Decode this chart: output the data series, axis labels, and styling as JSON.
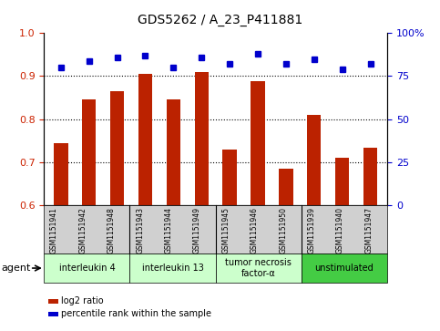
{
  "title": "GDS5262 / A_23_P411881",
  "samples": [
    "GSM1151941",
    "GSM1151942",
    "GSM1151948",
    "GSM1151943",
    "GSM1151944",
    "GSM1151949",
    "GSM1151945",
    "GSM1151946",
    "GSM1151950",
    "GSM1151939",
    "GSM1151940",
    "GSM1151947"
  ],
  "log2_ratio": [
    0.745,
    0.845,
    0.865,
    0.905,
    0.845,
    0.91,
    0.73,
    0.888,
    0.685,
    0.81,
    0.71,
    0.733
  ],
  "percentile": [
    80,
    84,
    86,
    87,
    80,
    86,
    82,
    88,
    82,
    85,
    79,
    82
  ],
  "bar_color": "#bb2200",
  "dot_color": "#0000cc",
  "ylim_left": [
    0.6,
    1.0
  ],
  "ylim_right": [
    0,
    100
  ],
  "yticks_left": [
    0.6,
    0.7,
    0.8,
    0.9,
    1.0
  ],
  "yticks_right": [
    0,
    25,
    50,
    75,
    100
  ],
  "hgrid_lines": [
    0.7,
    0.8,
    0.9
  ],
  "groups": [
    {
      "label": "interleukin 4",
      "start": 0,
      "end": 3,
      "color": "#ccffcc"
    },
    {
      "label": "interleukin 13",
      "start": 3,
      "end": 6,
      "color": "#ccffcc"
    },
    {
      "label": "tumor necrosis\nfactor-α",
      "start": 6,
      "end": 9,
      "color": "#ccffcc"
    },
    {
      "label": "unstimulated",
      "start": 9,
      "end": 12,
      "color": "#44cc44"
    }
  ],
  "agent_label": "agent",
  "legend_bar_label": "log2 ratio",
  "legend_dot_label": "percentile rank within the sample",
  "bar_width": 0.5,
  "tick_label_color_left": "#cc2200",
  "tick_label_color_right": "#0000cc",
  "sample_box_color": "#d0d0d0",
  "fig_bg": "white"
}
